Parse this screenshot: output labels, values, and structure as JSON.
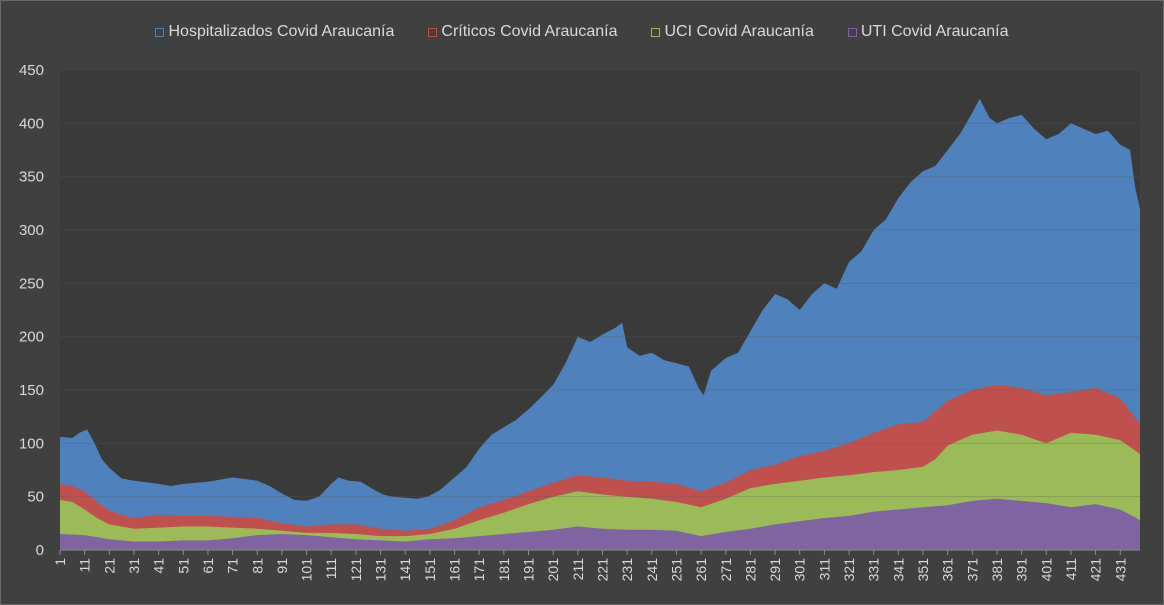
{
  "chart_data": {
    "type": "area",
    "stacking": "overlapping",
    "title": "",
    "xlabel": "",
    "ylabel": "",
    "xlim": [
      1,
      439
    ],
    "ylim": [
      0,
      450
    ],
    "y_ticks": [
      "0",
      "50",
      "100",
      "150",
      "200",
      "250",
      "300",
      "350",
      "400",
      "450"
    ],
    "x_ticks": [
      "1",
      "11",
      "21",
      "31",
      "41",
      "51",
      "61",
      "71",
      "81",
      "91",
      "101",
      "111",
      "121",
      "131",
      "141",
      "151",
      "161",
      "171",
      "181",
      "191",
      "201",
      "211",
      "221",
      "231",
      "241",
      "251",
      "261",
      "271",
      "281",
      "291",
      "301",
      "311",
      "321",
      "331",
      "341",
      "351",
      "361",
      "371",
      "381",
      "391",
      "401",
      "411",
      "421",
      "431"
    ],
    "grid": "horizontal",
    "legend_position": "top",
    "background": "#404040",
    "plot_background": "#3a3a3a",
    "series": [
      {
        "name": "Hospitalizados Covid Araucanía",
        "color": "#4f81bd",
        "points": [
          [
            1,
            106
          ],
          [
            6,
            105
          ],
          [
            9,
            110
          ],
          [
            12,
            113
          ],
          [
            15,
            100
          ],
          [
            18,
            85
          ],
          [
            21,
            77
          ],
          [
            26,
            67
          ],
          [
            31,
            65
          ],
          [
            41,
            62
          ],
          [
            46,
            60
          ],
          [
            51,
            62
          ],
          [
            61,
            64
          ],
          [
            71,
            68
          ],
          [
            81,
            65
          ],
          [
            86,
            60
          ],
          [
            91,
            53
          ],
          [
            96,
            47
          ],
          [
            101,
            46
          ],
          [
            106,
            50
          ],
          [
            111,
            62
          ],
          [
            114,
            68
          ],
          [
            118,
            65
          ],
          [
            123,
            64
          ],
          [
            128,
            57
          ],
          [
            132,
            52
          ],
          [
            136,
            50
          ],
          [
            141,
            49
          ],
          [
            146,
            48
          ],
          [
            150,
            50
          ],
          [
            155,
            56
          ],
          [
            161,
            68
          ],
          [
            166,
            78
          ],
          [
            171,
            95
          ],
          [
            176,
            108
          ],
          [
            181,
            115
          ],
          [
            186,
            122
          ],
          [
            191,
            132
          ],
          [
            196,
            143
          ],
          [
            201,
            155
          ],
          [
            206,
            175
          ],
          [
            211,
            200
          ],
          [
            216,
            195
          ],
          [
            221,
            202
          ],
          [
            226,
            208
          ],
          [
            229,
            213
          ],
          [
            231,
            190
          ],
          [
            236,
            182
          ],
          [
            241,
            185
          ],
          [
            246,
            178
          ],
          [
            251,
            175
          ],
          [
            256,
            172
          ],
          [
            260,
            152
          ],
          [
            262,
            145
          ],
          [
            265,
            168
          ],
          [
            271,
            180
          ],
          [
            276,
            185
          ],
          [
            281,
            205
          ],
          [
            286,
            225
          ],
          [
            291,
            240
          ],
          [
            296,
            235
          ],
          [
            301,
            225
          ],
          [
            306,
            240
          ],
          [
            311,
            250
          ],
          [
            316,
            245
          ],
          [
            321,
            270
          ],
          [
            326,
            280
          ],
          [
            331,
            300
          ],
          [
            336,
            310
          ],
          [
            341,
            330
          ],
          [
            346,
            345
          ],
          [
            351,
            355
          ],
          [
            356,
            360
          ],
          [
            361,
            375
          ],
          [
            366,
            390
          ],
          [
            371,
            410
          ],
          [
            374,
            423
          ],
          [
            378,
            405
          ],
          [
            381,
            400
          ],
          [
            386,
            405
          ],
          [
            391,
            408
          ],
          [
            396,
            395
          ],
          [
            401,
            385
          ],
          [
            406,
            390
          ],
          [
            411,
            400
          ],
          [
            416,
            395
          ],
          [
            421,
            390
          ],
          [
            426,
            393
          ],
          [
            431,
            380
          ],
          [
            435,
            375
          ],
          [
            437,
            340
          ],
          [
            439,
            320
          ]
        ]
      },
      {
        "name": "Críticos Covid Araucanía",
        "color": "#c0504d",
        "points": [
          [
            1,
            62
          ],
          [
            6,
            60
          ],
          [
            11,
            55
          ],
          [
            16,
            45
          ],
          [
            21,
            37
          ],
          [
            26,
            33
          ],
          [
            31,
            30
          ],
          [
            41,
            33
          ],
          [
            51,
            32
          ],
          [
            61,
            32
          ],
          [
            71,
            31
          ],
          [
            81,
            30
          ],
          [
            91,
            25
          ],
          [
            101,
            22
          ],
          [
            111,
            24
          ],
          [
            121,
            24
          ],
          [
            131,
            20
          ],
          [
            141,
            18
          ],
          [
            151,
            20
          ],
          [
            161,
            28
          ],
          [
            171,
            40
          ],
          [
            181,
            47
          ],
          [
            191,
            55
          ],
          [
            201,
            63
          ],
          [
            211,
            70
          ],
          [
            221,
            68
          ],
          [
            231,
            65
          ],
          [
            241,
            64
          ],
          [
            251,
            62
          ],
          [
            261,
            55
          ],
          [
            271,
            63
          ],
          [
            281,
            75
          ],
          [
            291,
            80
          ],
          [
            301,
            88
          ],
          [
            311,
            93
          ],
          [
            321,
            100
          ],
          [
            331,
            110
          ],
          [
            341,
            118
          ],
          [
            351,
            120
          ],
          [
            356,
            130
          ],
          [
            361,
            140
          ],
          [
            371,
            150
          ],
          [
            381,
            155
          ],
          [
            391,
            152
          ],
          [
            401,
            145
          ],
          [
            411,
            148
          ],
          [
            421,
            152
          ],
          [
            431,
            142
          ],
          [
            439,
            118
          ]
        ]
      },
      {
        "name": "UCI Covid Araucanía",
        "color": "#9bbb59",
        "points": [
          [
            1,
            47
          ],
          [
            6,
            45
          ],
          [
            11,
            38
          ],
          [
            16,
            30
          ],
          [
            21,
            24
          ],
          [
            26,
            22
          ],
          [
            31,
            20
          ],
          [
            41,
            21
          ],
          [
            51,
            22
          ],
          [
            61,
            22
          ],
          [
            71,
            21
          ],
          [
            81,
            20
          ],
          [
            91,
            18
          ],
          [
            101,
            16
          ],
          [
            111,
            16
          ],
          [
            121,
            15
          ],
          [
            131,
            13
          ],
          [
            141,
            13
          ],
          [
            151,
            15
          ],
          [
            161,
            20
          ],
          [
            171,
            28
          ],
          [
            181,
            35
          ],
          [
            191,
            43
          ],
          [
            201,
            50
          ],
          [
            211,
            55
          ],
          [
            221,
            52
          ],
          [
            231,
            50
          ],
          [
            241,
            48
          ],
          [
            251,
            45
          ],
          [
            261,
            40
          ],
          [
            271,
            48
          ],
          [
            281,
            58
          ],
          [
            291,
            62
          ],
          [
            301,
            65
          ],
          [
            311,
            68
          ],
          [
            321,
            70
          ],
          [
            331,
            73
          ],
          [
            341,
            75
          ],
          [
            351,
            78
          ],
          [
            356,
            85
          ],
          [
            361,
            98
          ],
          [
            371,
            108
          ],
          [
            381,
            112
          ],
          [
            391,
            108
          ],
          [
            401,
            100
          ],
          [
            411,
            110
          ],
          [
            421,
            108
          ],
          [
            431,
            103
          ],
          [
            439,
            90
          ]
        ]
      },
      {
        "name": "UTI Covid Araucanía",
        "color": "#8064a2",
        "points": [
          [
            1,
            15
          ],
          [
            11,
            14
          ],
          [
            21,
            10
          ],
          [
            31,
            8
          ],
          [
            41,
            8
          ],
          [
            51,
            9
          ],
          [
            61,
            9
          ],
          [
            71,
            11
          ],
          [
            81,
            14
          ],
          [
            91,
            15
          ],
          [
            101,
            14
          ],
          [
            111,
            12
          ],
          [
            121,
            10
          ],
          [
            131,
            9
          ],
          [
            141,
            8
          ],
          [
            151,
            10
          ],
          [
            161,
            11
          ],
          [
            171,
            13
          ],
          [
            181,
            15
          ],
          [
            191,
            17
          ],
          [
            201,
            19
          ],
          [
            211,
            22
          ],
          [
            221,
            20
          ],
          [
            231,
            19
          ],
          [
            241,
            19
          ],
          [
            251,
            18
          ],
          [
            261,
            13
          ],
          [
            271,
            17
          ],
          [
            281,
            20
          ],
          [
            291,
            24
          ],
          [
            301,
            27
          ],
          [
            311,
            30
          ],
          [
            321,
            32
          ],
          [
            331,
            36
          ],
          [
            341,
            38
          ],
          [
            351,
            40
          ],
          [
            361,
            42
          ],
          [
            371,
            46
          ],
          [
            381,
            48
          ],
          [
            391,
            46
          ],
          [
            401,
            44
          ],
          [
            411,
            40
          ],
          [
            421,
            43
          ],
          [
            431,
            38
          ],
          [
            439,
            28
          ]
        ]
      }
    ]
  }
}
